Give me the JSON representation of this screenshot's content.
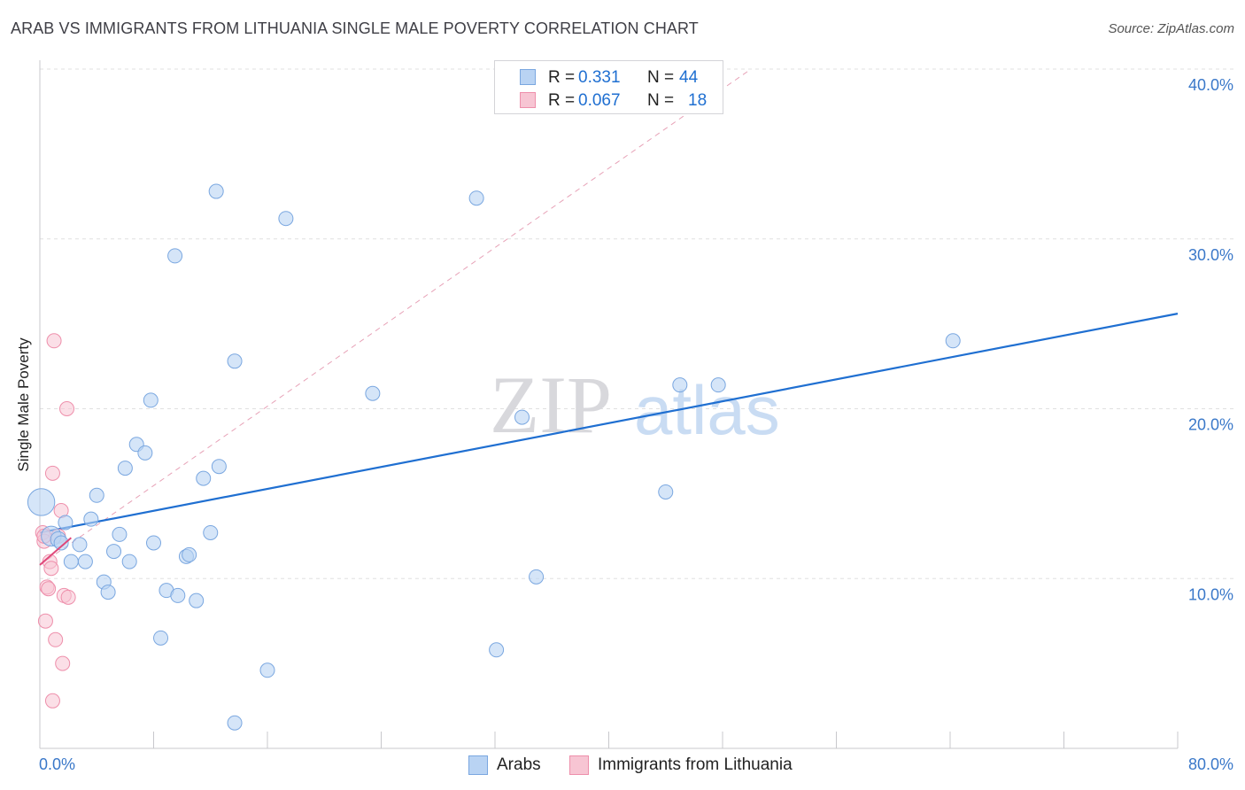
{
  "title": "ARAB VS IMMIGRANTS FROM LITHUANIA SINGLE MALE POVERTY CORRELATION CHART",
  "source": "Source: ZipAtlas.com",
  "watermark": {
    "zip": "ZIP",
    "atlas": "atlas"
  },
  "legend_top": [
    {
      "r_label": "R =",
      "r_value": "0.331",
      "n_label": "N =",
      "n_value": "44"
    },
    {
      "r_label": "R =",
      "r_value": "0.067",
      "n_label": "N =",
      "n_value": "18"
    }
  ],
  "legend_bottom": [
    {
      "label": "Arabs"
    },
    {
      "label": "Immigrants from Lithuania"
    }
  ],
  "colors": {
    "arabs_fill": "#b9d3f3",
    "arabs_stroke": "#7aa7e0",
    "arabs_line": "#1f6fd1",
    "lith_fill": "#f7c5d3",
    "lith_stroke": "#ee8fab",
    "lith_line": "#e0487a",
    "tick_label": "#3a78c9",
    "grid": "#e0e0e0"
  },
  "chart_data": {
    "type": "scatter",
    "title": "ARAB VS IMMIGRANTS FROM LITHUANIA SINGLE MALE POVERTY CORRELATION CHART",
    "xlabel": "",
    "ylabel": "Single Male Poverty",
    "xlim": [
      0,
      80
    ],
    "ylim": [
      0,
      40
    ],
    "x_tick_labels": [
      "0.0%",
      "80.0%"
    ],
    "y_ticks": [
      10,
      20,
      30,
      40
    ],
    "y_tick_labels": [
      "10.0%",
      "20.0%",
      "30.0%",
      "40.0%"
    ],
    "series": [
      {
        "name": "Arabs",
        "points": [
          [
            0.1,
            14.5,
            1.9
          ],
          [
            0.8,
            12.5,
            1.4
          ],
          [
            1.3,
            12.3,
            1.1
          ],
          [
            1.5,
            12.1,
            1
          ],
          [
            1.8,
            13.3,
            1
          ],
          [
            2.2,
            11.0,
            1
          ],
          [
            2.8,
            12.0,
            1
          ],
          [
            3.2,
            11.0,
            1
          ],
          [
            3.6,
            13.5,
            1
          ],
          [
            4.0,
            14.9,
            1
          ],
          [
            4.5,
            9.8,
            1
          ],
          [
            4.8,
            9.2,
            1
          ],
          [
            5.2,
            11.6,
            1
          ],
          [
            5.6,
            12.6,
            1
          ],
          [
            6.0,
            16.5,
            1
          ],
          [
            6.3,
            11.0,
            1
          ],
          [
            6.8,
            17.9,
            1
          ],
          [
            7.4,
            17.4,
            1
          ],
          [
            7.8,
            20.5,
            1
          ],
          [
            8.0,
            12.1,
            1
          ],
          [
            8.5,
            6.5,
            1
          ],
          [
            8.9,
            9.3,
            1
          ],
          [
            9.5,
            29.0,
            1
          ],
          [
            9.7,
            9.0,
            1
          ],
          [
            10.3,
            11.3,
            1
          ],
          [
            10.5,
            11.4,
            1
          ],
          [
            11.0,
            8.7,
            1
          ],
          [
            11.5,
            15.9,
            1
          ],
          [
            12.0,
            12.7,
            1
          ],
          [
            12.4,
            32.8,
            1
          ],
          [
            12.6,
            16.6,
            1
          ],
          [
            13.7,
            22.8,
            1
          ],
          [
            13.7,
            1.5,
            1
          ],
          [
            16.0,
            4.6,
            1
          ],
          [
            17.3,
            31.2,
            1
          ],
          [
            23.4,
            20.9,
            1
          ],
          [
            30.7,
            32.4,
            1
          ],
          [
            32.1,
            5.8,
            1
          ],
          [
            33.9,
            19.5,
            1
          ],
          [
            34.9,
            10.1,
            1
          ],
          [
            44.0,
            15.1,
            1
          ],
          [
            45.0,
            21.4,
            1
          ],
          [
            47.7,
            21.4,
            1
          ],
          [
            64.2,
            24.0,
            1
          ]
        ],
        "trend": {
          "x": [
            0,
            80
          ],
          "y": [
            12.7,
            25.6
          ]
        }
      },
      {
        "name": "Immigrants from Lithuania",
        "points": [
          [
            0.2,
            12.7,
            1
          ],
          [
            0.3,
            12.2,
            1
          ],
          [
            0.4,
            7.5,
            1
          ],
          [
            0.5,
            9.5,
            1
          ],
          [
            0.6,
            9.4,
            1
          ],
          [
            0.7,
            11.0,
            1
          ],
          [
            0.8,
            10.6,
            1
          ],
          [
            0.9,
            2.8,
            1
          ],
          [
            0.9,
            16.2,
            1
          ],
          [
            1.0,
            24.0,
            1
          ],
          [
            1.1,
            6.4,
            1
          ],
          [
            1.3,
            12.5,
            1
          ],
          [
            1.5,
            14.0,
            1
          ],
          [
            1.6,
            5.0,
            1
          ],
          [
            1.7,
            9.0,
            1
          ],
          [
            1.9,
            20.0,
            1
          ],
          [
            2.0,
            8.9,
            1
          ],
          [
            0.3,
            12.5,
            1
          ]
        ],
        "trend": {
          "x": [
            0,
            2.2
          ],
          "y": [
            10.8,
            12.4
          ]
        },
        "reference_line": {
          "x": [
            0,
            50
          ],
          "y": [
            10.8,
            40.0
          ]
        }
      }
    ]
  }
}
